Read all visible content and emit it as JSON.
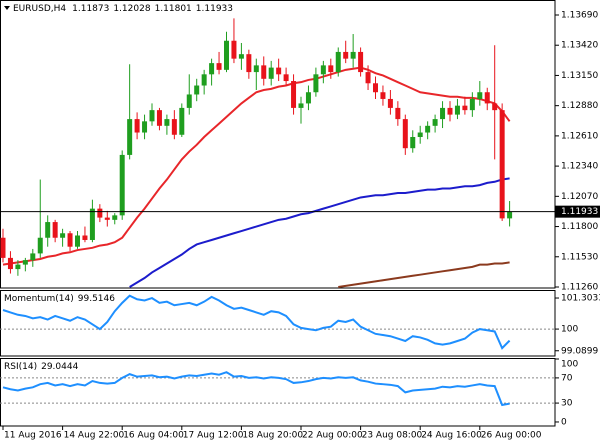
{
  "chart_data": [
    {
      "type": "candlestick",
      "title": "EURUSD,H4",
      "categories": [
        "11 Aug 2016",
        null,
        null,
        null,
        null,
        null,
        null,
        null,
        "14 Aug 22:00",
        null,
        null,
        null,
        null,
        null,
        null,
        null,
        "16 Aug 04:00",
        null,
        null,
        null,
        null,
        null,
        null,
        null,
        "17 Aug 12:00",
        null,
        null,
        null,
        null,
        null,
        null,
        null,
        "18 Aug 20:00",
        null,
        null,
        null,
        null,
        null,
        null,
        null,
        "22 Aug 00:00",
        null,
        null,
        null,
        null,
        null,
        null,
        null,
        "23 Aug 08:00",
        null,
        null,
        null,
        null,
        null,
        null,
        null,
        "24 Aug 16:00",
        null,
        null,
        null,
        null,
        null,
        null,
        null,
        "26 Aug 00:00",
        null,
        null,
        null,
        null
      ],
      "open": [
        1.117,
        1.1152,
        1.1142,
        1.1146,
        1.115,
        1.1156,
        1.117,
        1.1184,
        1.117,
        1.1174,
        1.1162,
        1.1172,
        1.1168,
        1.1196,
        1.1188,
        1.1186,
        1.119,
        1.1244,
        1.1276,
        1.1264,
        1.1274,
        1.1284,
        1.127,
        1.1276,
        1.1262,
        1.1286,
        1.1298,
        1.1306,
        1.1316,
        1.1326,
        1.132,
        1.1346,
        1.133,
        1.1334,
        1.1318,
        1.1324,
        1.1312,
        1.1322,
        1.1316,
        1.131,
        1.1286,
        1.129,
        1.13,
        1.1316,
        1.1324,
        1.1318,
        1.1336,
        1.133,
        1.1336,
        1.1318,
        1.1308,
        1.13,
        1.1294,
        1.1286,
        1.1276,
        1.125,
        1.126,
        1.1264,
        1.127,
        1.1276,
        1.1286,
        1.128,
        1.1288,
        1.1284,
        1.1294,
        1.13,
        1.129,
        1.1284,
        1.11873
      ],
      "high": [
        1.1178,
        1.1158,
        1.115,
        1.1152,
        1.116,
        1.1222,
        1.119,
        1.1186,
        1.1178,
        1.1176,
        1.1176,
        1.118,
        1.1204,
        1.12,
        1.1194,
        1.1192,
        1.1248,
        1.1325,
        1.1282,
        1.128,
        1.129,
        1.1286,
        1.128,
        1.1284,
        1.129,
        1.1316,
        1.1312,
        1.132,
        1.133,
        1.1336,
        1.1354,
        1.1366,
        1.1344,
        1.1338,
        1.133,
        1.1332,
        1.1328,
        1.133,
        1.1322,
        1.1316,
        1.1296,
        1.1306,
        1.1322,
        1.1328,
        1.133,
        1.134,
        1.1346,
        1.1352,
        1.134,
        1.1324,
        1.1314,
        1.1306,
        1.1302,
        1.1292,
        1.128,
        1.1266,
        1.127,
        1.1274,
        1.128,
        1.1292,
        1.1292,
        1.1294,
        1.1296,
        1.13,
        1.131,
        1.1304,
        1.1342,
        1.129,
        1.12028
      ],
      "low": [
        1.1148,
        1.1138,
        1.1136,
        1.114,
        1.1144,
        1.1152,
        1.1162,
        1.1166,
        1.1162,
        1.1158,
        1.116,
        1.1166,
        1.1166,
        1.1184,
        1.118,
        1.1182,
        1.1186,
        1.124,
        1.1258,
        1.1258,
        1.127,
        1.1266,
        1.1262,
        1.1258,
        1.126,
        1.128,
        1.1292,
        1.1298,
        1.1306,
        1.1316,
        1.1318,
        1.1326,
        1.132,
        1.1312,
        1.1302,
        1.1306,
        1.1306,
        1.131,
        1.1306,
        1.128,
        1.1272,
        1.1284,
        1.1296,
        1.1308,
        1.1312,
        1.1314,
        1.1326,
        1.1322,
        1.1314,
        1.1302,
        1.1294,
        1.1288,
        1.128,
        1.127,
        1.1244,
        1.1246,
        1.1254,
        1.1258,
        1.1264,
        1.1268,
        1.1274,
        1.1276,
        1.128,
        1.1278,
        1.1288,
        1.1284,
        1.124,
        1.1185,
        1.11801
      ],
      "close": [
        1.1152,
        1.1142,
        1.1146,
        1.115,
        1.1156,
        1.117,
        1.1184,
        1.117,
        1.1174,
        1.1162,
        1.1172,
        1.1168,
        1.1196,
        1.1188,
        1.1186,
        1.119,
        1.1244,
        1.1276,
        1.1264,
        1.1274,
        1.1284,
        1.127,
        1.1276,
        1.1262,
        1.1286,
        1.1298,
        1.1306,
        1.1316,
        1.1326,
        1.132,
        1.1346,
        1.133,
        1.1334,
        1.1318,
        1.1324,
        1.1312,
        1.1322,
        1.1316,
        1.131,
        1.1286,
        1.129,
        1.13,
        1.1316,
        1.1324,
        1.1318,
        1.1336,
        1.133,
        1.1336,
        1.1318,
        1.1308,
        1.13,
        1.1294,
        1.1286,
        1.1276,
        1.125,
        1.126,
        1.1264,
        1.127,
        1.1276,
        1.1286,
        1.128,
        1.1288,
        1.1284,
        1.1294,
        1.13,
        1.129,
        1.1284,
        1.11873,
        1.11933
      ],
      "up_color": "#1f9e1f",
      "down_color": "#e8131b",
      "series": [
        {
          "color": "#e8262a",
          "values": [
            1.1146,
            1.1147,
            1.1148,
            1.1149,
            1.115,
            1.1151,
            1.1153,
            1.1154,
            1.1156,
            1.1157,
            1.1159,
            1.116,
            1.1161,
            1.1163,
            1.1164,
            1.1166,
            1.117,
            1.1179,
            1.1188,
            1.1196,
            1.1205,
            1.1214,
            1.1222,
            1.1231,
            1.124,
            1.1247,
            1.1253,
            1.126,
            1.1266,
            1.1272,
            1.1278,
            1.1284,
            1.129,
            1.1295,
            1.13,
            1.1302,
            1.1303,
            1.1305,
            1.1306,
            1.1308,
            1.1309,
            1.1311,
            1.1312,
            1.1314,
            1.1316,
            1.1318,
            1.132,
            1.1321,
            1.1322,
            1.132,
            1.1317,
            1.1315,
            1.1312,
            1.1309,
            1.1306,
            1.1303,
            1.13,
            1.1299,
            1.1298,
            1.1297,
            1.1296,
            1.1296,
            1.1295,
            1.1295,
            1.1294,
            1.1292,
            1.129,
            1.1283,
            1.1274
          ]
        },
        {
          "color": "#1c1ccc",
          "values": [
            null,
            null,
            null,
            null,
            null,
            null,
            null,
            null,
            null,
            null,
            null,
            null,
            null,
            null,
            null,
            null,
            null,
            1.1126,
            1.113,
            1.1134,
            1.1139,
            1.1143,
            1.1147,
            1.1151,
            1.1155,
            1.116,
            1.1164,
            1.1166,
            1.1168,
            1.117,
            1.1172,
            1.1174,
            1.1176,
            1.1178,
            1.118,
            1.1182,
            1.1184,
            1.1186,
            1.1187,
            1.1189,
            1.1191,
            1.1192,
            1.1194,
            1.1196,
            1.1198,
            1.12,
            1.1202,
            1.1204,
            1.1206,
            1.1207,
            1.1208,
            1.1208,
            1.1209,
            1.121,
            1.121,
            1.1211,
            1.1212,
            1.1213,
            1.1213,
            1.1214,
            1.1214,
            1.1215,
            1.1216,
            1.1216,
            1.1217,
            1.1219,
            1.122,
            1.1222,
            1.1223
          ]
        },
        {
          "color": "#8b3a1e",
          "values": [
            null,
            null,
            null,
            null,
            null,
            null,
            null,
            null,
            null,
            null,
            null,
            null,
            null,
            null,
            null,
            null,
            null,
            null,
            null,
            null,
            null,
            null,
            null,
            null,
            null,
            null,
            null,
            null,
            null,
            null,
            null,
            null,
            null,
            null,
            null,
            null,
            null,
            null,
            null,
            null,
            null,
            null,
            null,
            null,
            null,
            1.1126,
            1.1127,
            1.1128,
            1.1129,
            1.113,
            1.1131,
            1.1132,
            1.1133,
            1.1134,
            1.1135,
            1.1136,
            1.1137,
            1.1138,
            1.1139,
            1.114,
            1.1141,
            1.1142,
            1.1143,
            1.1144,
            1.1146,
            1.1146,
            1.1147,
            1.1147,
            1.1148
          ]
        }
      ],
      "ylim": [
        1.11251,
        1.13824
      ],
      "yticks": [
        {
          "value": 1.1369,
          "label": "1.13690"
        },
        {
          "value": 1.1342,
          "label": "1.13420"
        },
        {
          "value": 1.1315,
          "label": "1.13150"
        },
        {
          "value": 1.1288,
          "label": "1.12880"
        },
        {
          "value": 1.1261,
          "label": "1.12610"
        },
        {
          "value": 1.1234,
          "label": "1.12340"
        },
        {
          "value": 1.1207,
          "label": "1.12070"
        },
        {
          "value": 1.118,
          "label": "1.11800"
        },
        {
          "value": 1.1153,
          "label": "1.11530"
        },
        {
          "value": 1.1126,
          "label": "1.11260"
        }
      ]
    },
    {
      "type": "line",
      "title": "Momentum(14)",
      "color": "#1e8fff",
      "values": [
        100.8,
        100.7,
        100.6,
        100.55,
        100.45,
        100.5,
        100.4,
        100.55,
        100.45,
        100.35,
        100.5,
        100.4,
        100.2,
        100.0,
        100.3,
        100.75,
        101.1,
        101.4,
        101.25,
        101.2,
        101.3,
        101.1,
        101.15,
        101.0,
        101.05,
        101.1,
        101.0,
        101.15,
        101.35,
        101.2,
        101.0,
        100.85,
        100.9,
        100.8,
        100.7,
        100.6,
        100.75,
        100.7,
        100.55,
        100.2,
        100.05,
        100.0,
        99.95,
        100.05,
        100.1,
        100.35,
        100.3,
        100.4,
        100.1,
        99.95,
        99.8,
        99.75,
        99.7,
        99.6,
        99.5,
        99.7,
        99.65,
        99.55,
        99.4,
        99.35,
        99.4,
        99.5,
        99.6,
        99.85,
        100.0,
        99.95,
        99.9,
        99.2,
        99.5146
      ],
      "ylim": [
        98.87,
        101.64
      ],
      "yticks": [
        101.3033,
        100,
        99.0899
      ],
      "levels": [
        100
      ]
    },
    {
      "type": "line",
      "title": "RSI(14)",
      "color": "#1e8fff",
      "values": [
        55,
        52,
        50,
        53,
        55,
        60,
        62,
        58,
        60,
        57,
        60,
        58,
        65,
        62,
        61,
        62,
        70,
        76,
        72,
        73,
        74,
        71,
        72,
        69,
        72,
        74,
        73,
        75,
        77,
        75,
        79,
        72,
        73,
        70,
        71,
        69,
        71,
        70,
        68,
        62,
        63,
        65,
        68,
        70,
        69,
        71,
        70,
        71,
        66,
        64,
        61,
        60,
        59,
        57,
        47,
        50,
        51,
        52,
        53,
        56,
        55,
        57,
        56,
        58,
        60,
        58,
        57,
        27,
        29.0444
      ],
      "ylim": [
        -6.4,
        101.6
      ],
      "yticks": [
        100,
        70,
        30,
        0
      ],
      "levels": [
        70,
        30
      ]
    }
  ]
}
